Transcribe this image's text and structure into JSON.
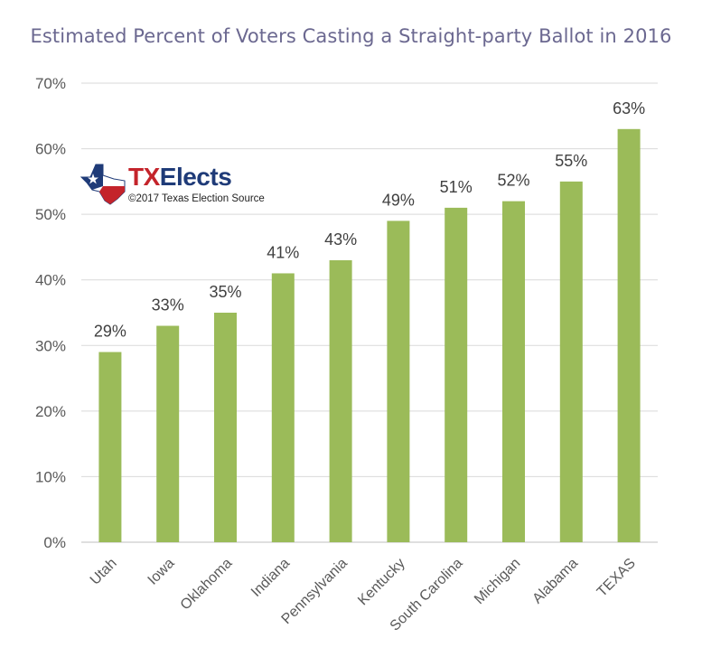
{
  "logo": {
    "name_part1": "TX",
    "name_part2": "Elects",
    "copyright": "©2017 Texas Election Source"
  },
  "colors": {
    "bar": "#9bbb59",
    "title": "#6b6890",
    "grid": "#d9d9d9",
    "axis_text": "#595959",
    "label_text": "#404040"
  },
  "chart_data": {
    "type": "bar",
    "title": "Estimated Percent of Voters Casting a Straight-party Ballot in 2016",
    "xlabel": "",
    "ylabel": "",
    "categories": [
      "Utah",
      "Iowa",
      "Oklahoma",
      "Indiana",
      "Pennsylvania",
      "Kentucky",
      "South Carolina",
      "Michigan",
      "Alabama",
      "TEXAS"
    ],
    "values": [
      29,
      33,
      35,
      41,
      43,
      49,
      51,
      52,
      55,
      63
    ],
    "data_labels": [
      "29%",
      "33%",
      "35%",
      "41%",
      "43%",
      "49%",
      "51%",
      "52%",
      "55%",
      "63%"
    ],
    "yticks": [
      "0%",
      "10%",
      "20%",
      "30%",
      "40%",
      "50%",
      "60%",
      "70%"
    ],
    "ylim": [
      0,
      70
    ],
    "grid": true,
    "legend": "none"
  }
}
